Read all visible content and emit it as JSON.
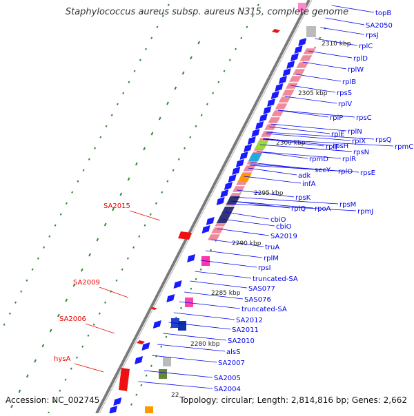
{
  "title": "Staphylococcus aureus subsp. aureus N315, complete genome",
  "footer": {
    "accession": "Accession: NC_002745",
    "summary": "Topology: circular; Length: 2,814,816 bp; Genes: 2,662"
  },
  "colors": {
    "backbone": "#8a8a8a",
    "gene_forward": "#1a1aff",
    "rna_pink": "#f08a9a",
    "label_blue": "#0000ee",
    "label_red": "#ee0000",
    "tick": "#338833"
  },
  "scale_labels": [
    "2310 kbp",
    "2305 kbp",
    "2300 kbp",
    "2295 kbp",
    "2290 kbp",
    "2285 kbp",
    "2280 kbp",
    "22"
  ],
  "blue_labels": [
    "topB",
    "SA2050",
    "rpsJ",
    "rplC",
    "rplD",
    "rplW",
    "rplB",
    "rpsS",
    "rplV",
    "rplP",
    "rpsC",
    "rpsQ",
    "rpmC",
    "rplN",
    "rplX",
    "rplE",
    "rpsN",
    "rpsH",
    "rplF",
    "rplR",
    "rpmD",
    "rpsE",
    "rplO",
    "secY",
    "adk",
    "infA",
    "rpsK",
    "rpsM",
    "rpmJ",
    "rpoA",
    "rplQ",
    "cbiO",
    "cbiO",
    "SA2019",
    "truA",
    "rplM",
    "rpsI",
    "truncated-SA",
    "SAS077",
    "SAS076",
    "truncated-SA",
    "SA2012",
    "SA2011",
    "SA2010",
    "alsS",
    "SA2007",
    "SA2005",
    "SA2004"
  ],
  "red_labels": [
    "SA2015",
    "SA2009",
    "SA2006",
    "hysA"
  ]
}
